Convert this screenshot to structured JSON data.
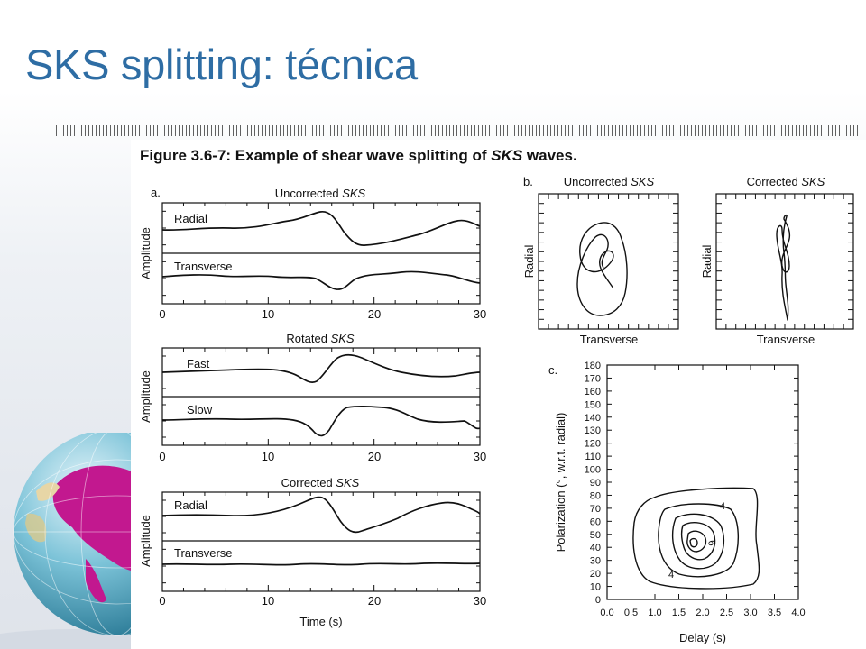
{
  "slide": {
    "title": "SKS splitting: técnica"
  },
  "figure": {
    "caption_prefix": "Figure 3.6-7: Example of shear wave splitting of ",
    "caption_italic": "SKS",
    "caption_suffix": " waves.",
    "panel_a": {
      "label": "a.",
      "uncorrected_title": "Uncorrected ",
      "rotated_title": "Rotated ",
      "corrected_title": "Corrected ",
      "sks": "SKS",
      "amplitude_label": "Amplitude",
      "radial_label": "Radial",
      "transverse_label": "Transverse",
      "fast_label": "Fast",
      "slow_label": "Slow",
      "x_ticks": [
        "0",
        "10",
        "20",
        "30"
      ],
      "time_label": "Time (s)"
    },
    "panel_b": {
      "label": "b.",
      "uncorrected_title": "Uncorrected ",
      "corrected_title": "Corrected ",
      "sks": "SKS",
      "radial_label": "Radial",
      "transverse_label": "Transverse"
    },
    "panel_c": {
      "label": "c.",
      "y_label": "Polarization (°, w.r.t. radial)",
      "x_label": "Delay (s)",
      "y_ticks": [
        "180",
        "170",
        "160",
        "150",
        "140",
        "130",
        "120",
        "110",
        "100",
        "90",
        "80",
        "70",
        "60",
        "50",
        "40",
        "30",
        "20",
        "10",
        "0"
      ],
      "x_ticks": [
        "0.0",
        "0.5",
        "1.0",
        "1.5",
        "2.0",
        "2.5",
        "3.0",
        "3.5",
        "4.0"
      ],
      "contour_labels": [
        "4",
        "6",
        "4"
      ]
    }
  }
}
